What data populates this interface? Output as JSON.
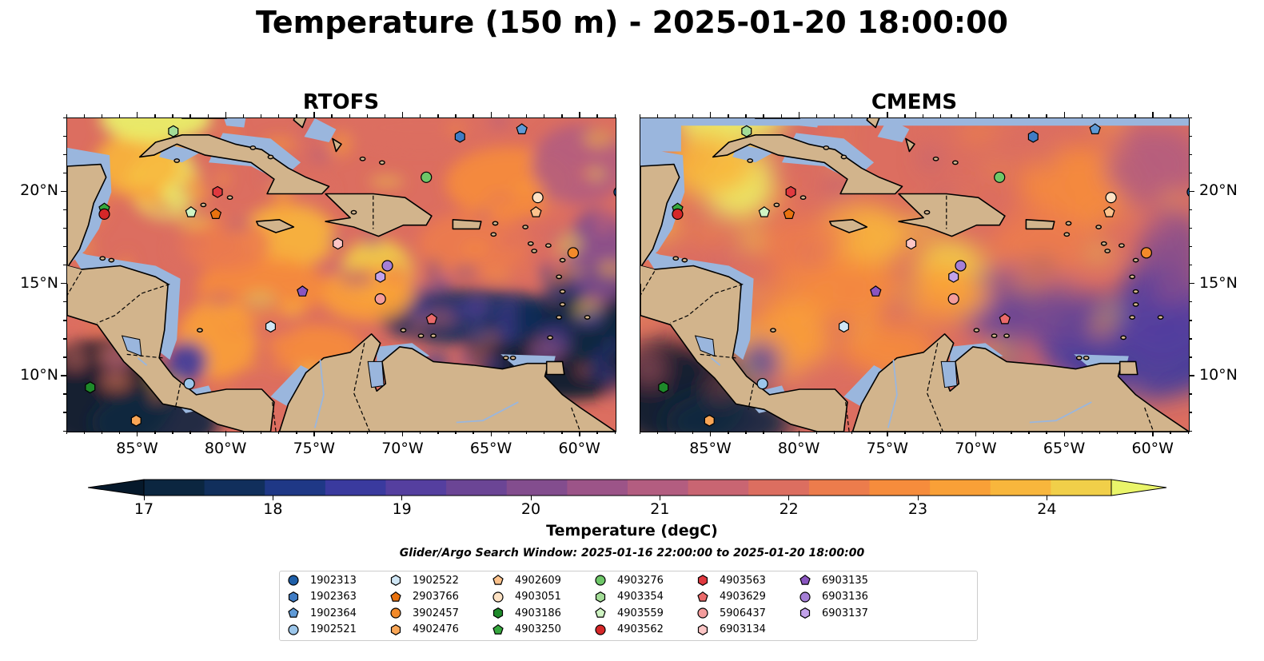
{
  "title": "Temperature (150 m) - 2025-01-20 18:00:00",
  "panels": [
    {
      "title": "RTOFS"
    },
    {
      "title": "CMEMS"
    }
  ],
  "lon_ticks": [
    "85°W",
    "80°W",
    "75°W",
    "70°W",
    "65°W",
    "60°W"
  ],
  "lat_ticks": [
    "20°N",
    "15°N",
    "10°N"
  ],
  "extent": {
    "lon": [
      -89,
      -58
    ],
    "lat": [
      7,
      24
    ]
  },
  "colorbar": {
    "label": "Temperature (degC)",
    "ticks": [
      "17",
      "18",
      "19",
      "20",
      "21",
      "22",
      "23",
      "24"
    ],
    "range": [
      17,
      24.5
    ],
    "colors": [
      "#0b2640",
      "#112f5c",
      "#1f3886",
      "#3a3a9e",
      "#553f9f",
      "#6b4595",
      "#834d8e",
      "#9c5488",
      "#b35d80",
      "#c96572",
      "#dc6e60",
      "#ec7c4c",
      "#f68c3c",
      "#f9a037",
      "#f8b63c",
      "#f1cf49"
    ],
    "under_color": "#06192b",
    "over_color": "#eaf56a"
  },
  "colors": {
    "land": "#d2b48c",
    "shelf": "#9ab6dd",
    "coast": "#000000"
  },
  "search_window": "Glider/Argo Search Window: 2025-01-16 22:00:00 to 2025-01-20 18:00:00",
  "legend": [
    {
      "id": "1902313",
      "marker": "circle",
      "color": "#1f5fa8"
    },
    {
      "id": "1902363",
      "marker": "hexagon",
      "color": "#3f7cc4"
    },
    {
      "id": "1902364",
      "marker": "pentagon",
      "color": "#5f9ad6"
    },
    {
      "id": "1902521",
      "marker": "circle",
      "color": "#9cc6ea"
    },
    {
      "id": "1902522",
      "marker": "hexagon",
      "color": "#cfe6f5"
    },
    {
      "id": "2903766",
      "marker": "pentagon",
      "color": "#e8720f"
    },
    {
      "id": "3902457",
      "marker": "circle",
      "color": "#f28a2a"
    },
    {
      "id": "4902476",
      "marker": "hexagon",
      "color": "#f9a656"
    },
    {
      "id": "4902609",
      "marker": "pentagon",
      "color": "#fcc28c"
    },
    {
      "id": "4903051",
      "marker": "circle",
      "color": "#fde2c4"
    },
    {
      "id": "4903186",
      "marker": "hexagon",
      "color": "#1e8a2a"
    },
    {
      "id": "4903250",
      "marker": "pentagon",
      "color": "#36a83e"
    },
    {
      "id": "4903276",
      "marker": "circle",
      "color": "#6ec768"
    },
    {
      "id": "4903354",
      "marker": "hexagon",
      "color": "#a3dd97"
    },
    {
      "id": "4903559",
      "marker": "pentagon",
      "color": "#cff4c3"
    },
    {
      "id": "4903562",
      "marker": "circle",
      "color": "#d62728"
    },
    {
      "id": "4903563",
      "marker": "hexagon",
      "color": "#e0393f"
    },
    {
      "id": "4903629",
      "marker": "pentagon",
      "color": "#ea6a6a"
    },
    {
      "id": "5906437",
      "marker": "circle",
      "color": "#f49c9c"
    },
    {
      "id": "6903134",
      "marker": "hexagon",
      "color": "#fcc6c6"
    },
    {
      "id": "6903135",
      "marker": "pentagon",
      "color": "#8a55c0"
    },
    {
      "id": "6903136",
      "marker": "circle",
      "color": "#a57fd6"
    },
    {
      "id": "6903137",
      "marker": "hexagon",
      "color": "#c2a2ea"
    }
  ],
  "floats": [
    {
      "id": "1902313",
      "lon": -57.8,
      "lat": 20.0
    },
    {
      "id": "1902363",
      "lon": -66.8,
      "lat": 23.0
    },
    {
      "id": "1902364",
      "lon": -63.3,
      "lat": 23.4
    },
    {
      "id": "1902521",
      "lon": -82.1,
      "lat": 9.6
    },
    {
      "id": "1902522",
      "lon": -77.5,
      "lat": 12.7
    },
    {
      "id": "2903766",
      "lon": -80.6,
      "lat": 18.8
    },
    {
      "id": "3902457",
      "lon": -60.4,
      "lat": 16.7
    },
    {
      "id": "4902476",
      "lon": -85.1,
      "lat": 7.6
    },
    {
      "id": "4902609",
      "lon": -62.5,
      "lat": 18.9
    },
    {
      "id": "4903051",
      "lon": -62.4,
      "lat": 19.7
    },
    {
      "id": "4903186",
      "lon": -87.7,
      "lat": 9.4
    },
    {
      "id": "4903250",
      "lon": -86.9,
      "lat": 19.1
    },
    {
      "id": "4903276",
      "lon": -68.7,
      "lat": 20.8
    },
    {
      "id": "4903354",
      "lon": -83.0,
      "lat": 23.3
    },
    {
      "id": "4903559",
      "lon": -82.0,
      "lat": 18.9
    },
    {
      "id": "4903562",
      "lon": -86.9,
      "lat": 18.8
    },
    {
      "id": "4903563",
      "lon": -80.5,
      "lat": 20.0
    },
    {
      "id": "4903629",
      "lon": -68.4,
      "lat": 13.1
    },
    {
      "id": "5906437",
      "lon": -71.3,
      "lat": 14.2
    },
    {
      "id": "6903134",
      "lon": -73.7,
      "lat": 17.2
    },
    {
      "id": "6903135",
      "lon": -75.7,
      "lat": 14.6
    },
    {
      "id": "6903136",
      "lon": -70.9,
      "lat": 16.0
    },
    {
      "id": "6903137",
      "lon": -71.3,
      "lat": 15.4
    }
  ]
}
